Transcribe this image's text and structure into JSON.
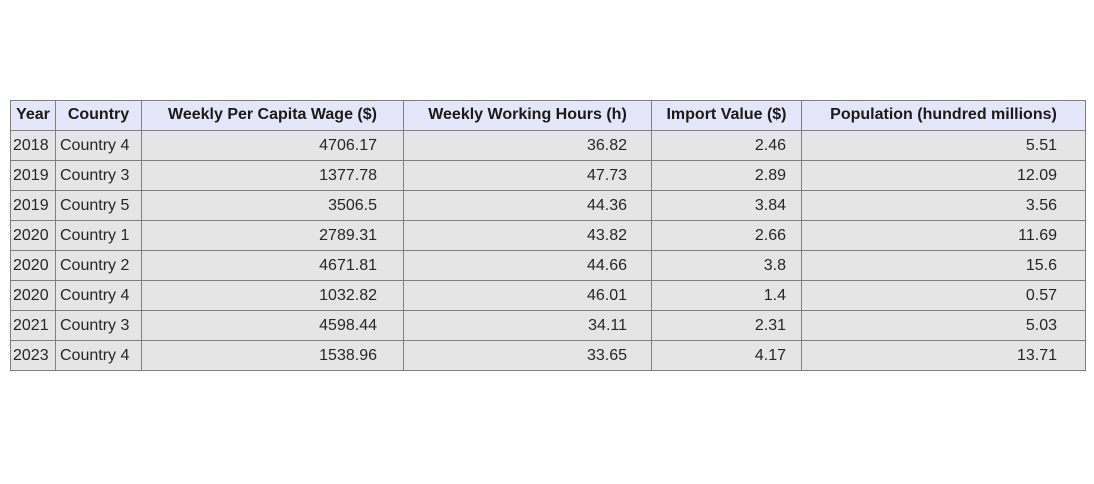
{
  "chart_data": {
    "type": "table",
    "columns": [
      "Year",
      "Country",
      "Weekly Per Capita Wage ($)",
      "Weekly Working Hours (h)",
      "Import Value ($)",
      "Population (hundred millions)"
    ],
    "rows": [
      [
        "2018",
        "Country 4",
        "4706.17",
        "36.82",
        "2.46",
        "5.51"
      ],
      [
        "2019",
        "Country 3",
        "1377.78",
        "47.73",
        "2.89",
        "12.09"
      ],
      [
        "2019",
        "Country 5",
        "3506.5",
        "44.36",
        "3.84",
        "3.56"
      ],
      [
        "2020",
        "Country 1",
        "2789.31",
        "43.82",
        "2.66",
        "11.69"
      ],
      [
        "2020",
        "Country 2",
        "4671.81",
        "44.66",
        "3.8",
        "15.6"
      ],
      [
        "2020",
        "Country 4",
        "1032.82",
        "46.01",
        "1.4",
        "0.57"
      ],
      [
        "2021",
        "Country 3",
        "4598.44",
        "34.11",
        "2.31",
        "5.03"
      ],
      [
        "2023",
        "Country 4",
        "1538.96",
        "33.65",
        "4.17",
        "13.71"
      ]
    ],
    "colors": {
      "header_bg": "#e6e6fa",
      "cell_bg": "#e5e5e5",
      "border": "#808080"
    }
  }
}
